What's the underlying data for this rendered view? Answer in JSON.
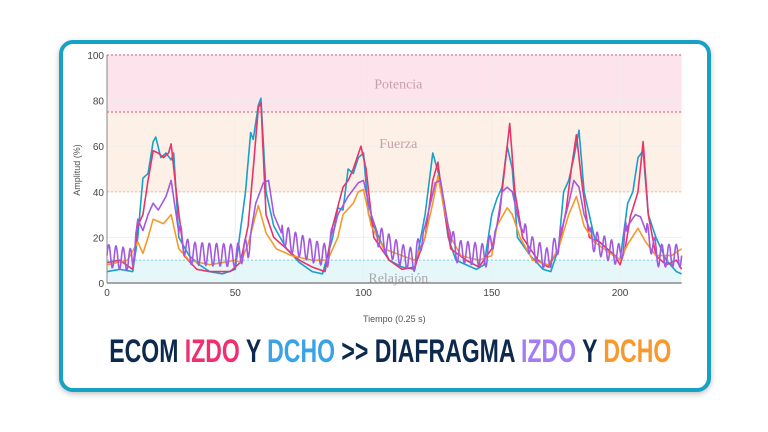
{
  "title": {
    "parts": [
      {
        "text": "ECOM ",
        "color": "#0d2a4e"
      },
      {
        "text": "IZDO",
        "color": "#f0306e"
      },
      {
        "text": " Y ",
        "color": "#0d2a4e"
      },
      {
        "text": "DCHO",
        "color": "#3aa3e6"
      },
      {
        "text": " >> DIAFRAGMA ",
        "color": "#0d2a4e"
      },
      {
        "text": "IZDO",
        "color": "#a27cf0"
      },
      {
        "text": " Y ",
        "color": "#0d2a4e"
      },
      {
        "text": "DCHO",
        "color": "#f7992e"
      }
    ]
  },
  "chart_data": {
    "type": "line",
    "xlabel": "Tiempo (0.25 s)",
    "ylabel": "Amplitud (%)",
    "xlim": [
      0,
      224
    ],
    "ylim": [
      0,
      100
    ],
    "xticks": [
      "0",
      "50",
      "100",
      "150",
      "200"
    ],
    "yticks": [
      "0",
      "20",
      "40",
      "60",
      "80",
      "100"
    ],
    "grid": true,
    "bands": [
      {
        "label": "Potencia",
        "from": 75,
        "to": 100,
        "color": "#fde3ec",
        "line": "#e8708f"
      },
      {
        "label": "Fuerza",
        "from": 40,
        "to": 75,
        "color": "#fdf0e6",
        "line": "#f2c29a"
      },
      {
        "label": "Relajación",
        "from": 0,
        "to": 10,
        "color": "#e6f7f9",
        "line": "#7fd6e0"
      }
    ],
    "series": [
      {
        "name": "ECOM DCHO",
        "color": "#1a9fc9",
        "oscillate": false,
        "points": [
          [
            0,
            5
          ],
          [
            5,
            6
          ],
          [
            10,
            5
          ],
          [
            12,
            20
          ],
          [
            14,
            46
          ],
          [
            16,
            48
          ],
          [
            18,
            62
          ],
          [
            19,
            64
          ],
          [
            21,
            55
          ],
          [
            23,
            57
          ],
          [
            25,
            54
          ],
          [
            26,
            57
          ],
          [
            28,
            20
          ],
          [
            32,
            12
          ],
          [
            36,
            8
          ],
          [
            40,
            5
          ],
          [
            45,
            4
          ],
          [
            50,
            6
          ],
          [
            54,
            40
          ],
          [
            56,
            66
          ],
          [
            57,
            63
          ],
          [
            59,
            78
          ],
          [
            60,
            81
          ],
          [
            62,
            40
          ],
          [
            65,
            25
          ],
          [
            70,
            15
          ],
          [
            75,
            9
          ],
          [
            80,
            5
          ],
          [
            84,
            4
          ],
          [
            88,
            20
          ],
          [
            90,
            33
          ],
          [
            92,
            32
          ],
          [
            94,
            50
          ],
          [
            96,
            48
          ],
          [
            98,
            55
          ],
          [
            100,
            57
          ],
          [
            102,
            30
          ],
          [
            106,
            20
          ],
          [
            110,
            10
          ],
          [
            115,
            7
          ],
          [
            120,
            6
          ],
          [
            124,
            30
          ],
          [
            127,
            57
          ],
          [
            130,
            45
          ],
          [
            133,
            20
          ],
          [
            136,
            10
          ],
          [
            140,
            8
          ],
          [
            144,
            6
          ],
          [
            147,
            8
          ],
          [
            150,
            30
          ],
          [
            152,
            37
          ],
          [
            154,
            42
          ],
          [
            156,
            60
          ],
          [
            158,
            50
          ],
          [
            160,
            20
          ],
          [
            165,
            12
          ],
          [
            170,
            6
          ],
          [
            173,
            5
          ],
          [
            176,
            15
          ],
          [
            178,
            40
          ],
          [
            180,
            45
          ],
          [
            182,
            55
          ],
          [
            184,
            67
          ],
          [
            186,
            40
          ],
          [
            190,
            20
          ],
          [
            195,
            15
          ],
          [
            200,
            10
          ],
          [
            203,
            35
          ],
          [
            205,
            40
          ],
          [
            207,
            55
          ],
          [
            209,
            58
          ],
          [
            211,
            30
          ],
          [
            214,
            20
          ],
          [
            218,
            10
          ],
          [
            222,
            5
          ],
          [
            224,
            4
          ]
        ]
      },
      {
        "name": "ECOM IZDO",
        "color": "#e8336b",
        "oscillate": false,
        "points": [
          [
            0,
            9
          ],
          [
            5,
            10
          ],
          [
            10,
            6
          ],
          [
            12,
            25
          ],
          [
            14,
            30
          ],
          [
            16,
            45
          ],
          [
            18,
            58
          ],
          [
            20,
            57
          ],
          [
            22,
            55
          ],
          [
            24,
            57
          ],
          [
            25,
            61
          ],
          [
            27,
            40
          ],
          [
            30,
            12
          ],
          [
            35,
            6
          ],
          [
            40,
            5
          ],
          [
            48,
            5
          ],
          [
            52,
            9
          ],
          [
            55,
            25
          ],
          [
            57,
            50
          ],
          [
            59,
            77
          ],
          [
            60,
            79
          ],
          [
            62,
            30
          ],
          [
            65,
            20
          ],
          [
            70,
            15
          ],
          [
            75,
            10
          ],
          [
            80,
            7
          ],
          [
            85,
            5
          ],
          [
            88,
            25
          ],
          [
            92,
            42
          ],
          [
            94,
            45
          ],
          [
            96,
            50
          ],
          [
            99,
            60
          ],
          [
            101,
            50
          ],
          [
            104,
            20
          ],
          [
            110,
            10
          ],
          [
            115,
            6
          ],
          [
            120,
            7
          ],
          [
            124,
            20
          ],
          [
            127,
            45
          ],
          [
            129,
            53
          ],
          [
            131,
            35
          ],
          [
            134,
            15
          ],
          [
            140,
            10
          ],
          [
            145,
            7
          ],
          [
            150,
            15
          ],
          [
            153,
            30
          ],
          [
            155,
            50
          ],
          [
            157,
            70
          ],
          [
            159,
            40
          ],
          [
            162,
            20
          ],
          [
            168,
            10
          ],
          [
            172,
            7
          ],
          [
            176,
            15
          ],
          [
            179,
            32
          ],
          [
            181,
            50
          ],
          [
            183,
            65
          ],
          [
            185,
            45
          ],
          [
            188,
            20
          ],
          [
            192,
            18
          ],
          [
            195,
            15
          ],
          [
            198,
            12
          ],
          [
            200,
            8
          ],
          [
            202,
            15
          ],
          [
            204,
            29
          ],
          [
            207,
            40
          ],
          [
            209,
            62
          ],
          [
            211,
            30
          ],
          [
            214,
            12
          ],
          [
            218,
            8
          ],
          [
            222,
            10
          ],
          [
            224,
            6
          ]
        ]
      },
      {
        "name": "DIAFRAGMA DCHO",
        "color": "#f39a2b",
        "oscillate": false,
        "points": [
          [
            0,
            8
          ],
          [
            8,
            10
          ],
          [
            12,
            18
          ],
          [
            14,
            13
          ],
          [
            16,
            20
          ],
          [
            18,
            28
          ],
          [
            20,
            27
          ],
          [
            22,
            26
          ],
          [
            25,
            30
          ],
          [
            28,
            15
          ],
          [
            32,
            10
          ],
          [
            40,
            8
          ],
          [
            50,
            10
          ],
          [
            52,
            9
          ],
          [
            55,
            17
          ],
          [
            58,
            30
          ],
          [
            59,
            34
          ],
          [
            62,
            22
          ],
          [
            66,
            15
          ],
          [
            72,
            12
          ],
          [
            80,
            10
          ],
          [
            86,
            10
          ],
          [
            90,
            20
          ],
          [
            92,
            30
          ],
          [
            96,
            35
          ],
          [
            98,
            40
          ],
          [
            100,
            41
          ],
          [
            103,
            25
          ],
          [
            108,
            15
          ],
          [
            115,
            12
          ],
          [
            120,
            10
          ],
          [
            124,
            20
          ],
          [
            127,
            35
          ],
          [
            129,
            47
          ],
          [
            131,
            35
          ],
          [
            134,
            20
          ],
          [
            138,
            12
          ],
          [
            145,
            10
          ],
          [
            150,
            12
          ],
          [
            152,
            25
          ],
          [
            156,
            33
          ],
          [
            158,
            30
          ],
          [
            161,
            20
          ],
          [
            166,
            10
          ],
          [
            172,
            8
          ],
          [
            176,
            15
          ],
          [
            180,
            30
          ],
          [
            183,
            38
          ],
          [
            186,
            25
          ],
          [
            190,
            18
          ],
          [
            195,
            14
          ],
          [
            200,
            10
          ],
          [
            203,
            17
          ],
          [
            207,
            24
          ],
          [
            210,
            18
          ],
          [
            214,
            12
          ],
          [
            220,
            12
          ],
          [
            224,
            15
          ]
        ]
      },
      {
        "name": "DIAFRAGMA IZDO",
        "color": "#a259e0",
        "oscillate": true,
        "points": [
          [
            0,
            12
          ],
          [
            10,
            10
          ],
          [
            12,
            28
          ],
          [
            14,
            23
          ],
          [
            16,
            30
          ],
          [
            18,
            35
          ],
          [
            20,
            32
          ],
          [
            23,
            38
          ],
          [
            25,
            45
          ],
          [
            28,
            22
          ],
          [
            32,
            13
          ],
          [
            50,
            12
          ],
          [
            55,
            15
          ],
          [
            58,
            35
          ],
          [
            61,
            44
          ],
          [
            63,
            45
          ],
          [
            65,
            30
          ],
          [
            68,
            22
          ],
          [
            72,
            18
          ],
          [
            80,
            14
          ],
          [
            86,
            12
          ],
          [
            90,
            30
          ],
          [
            94,
            38
          ],
          [
            98,
            44
          ],
          [
            100,
            45
          ],
          [
            103,
            30
          ],
          [
            106,
            20
          ],
          [
            115,
            12
          ],
          [
            120,
            10
          ],
          [
            124,
            25
          ],
          [
            128,
            44
          ],
          [
            130,
            45
          ],
          [
            133,
            25
          ],
          [
            136,
            14
          ],
          [
            148,
            12
          ],
          [
            152,
            25
          ],
          [
            154,
            40
          ],
          [
            156,
            42
          ],
          [
            158,
            40
          ],
          [
            161,
            25
          ],
          [
            166,
            15
          ],
          [
            172,
            10
          ],
          [
            176,
            18
          ],
          [
            180,
            35
          ],
          [
            182,
            45
          ],
          [
            184,
            42
          ],
          [
            186,
            30
          ],
          [
            190,
            18
          ],
          [
            200,
            12
          ],
          [
            203,
            25
          ],
          [
            206,
            30
          ],
          [
            208,
            29
          ],
          [
            211,
            20
          ],
          [
            215,
            12
          ],
          [
            224,
            12
          ]
        ]
      }
    ]
  }
}
